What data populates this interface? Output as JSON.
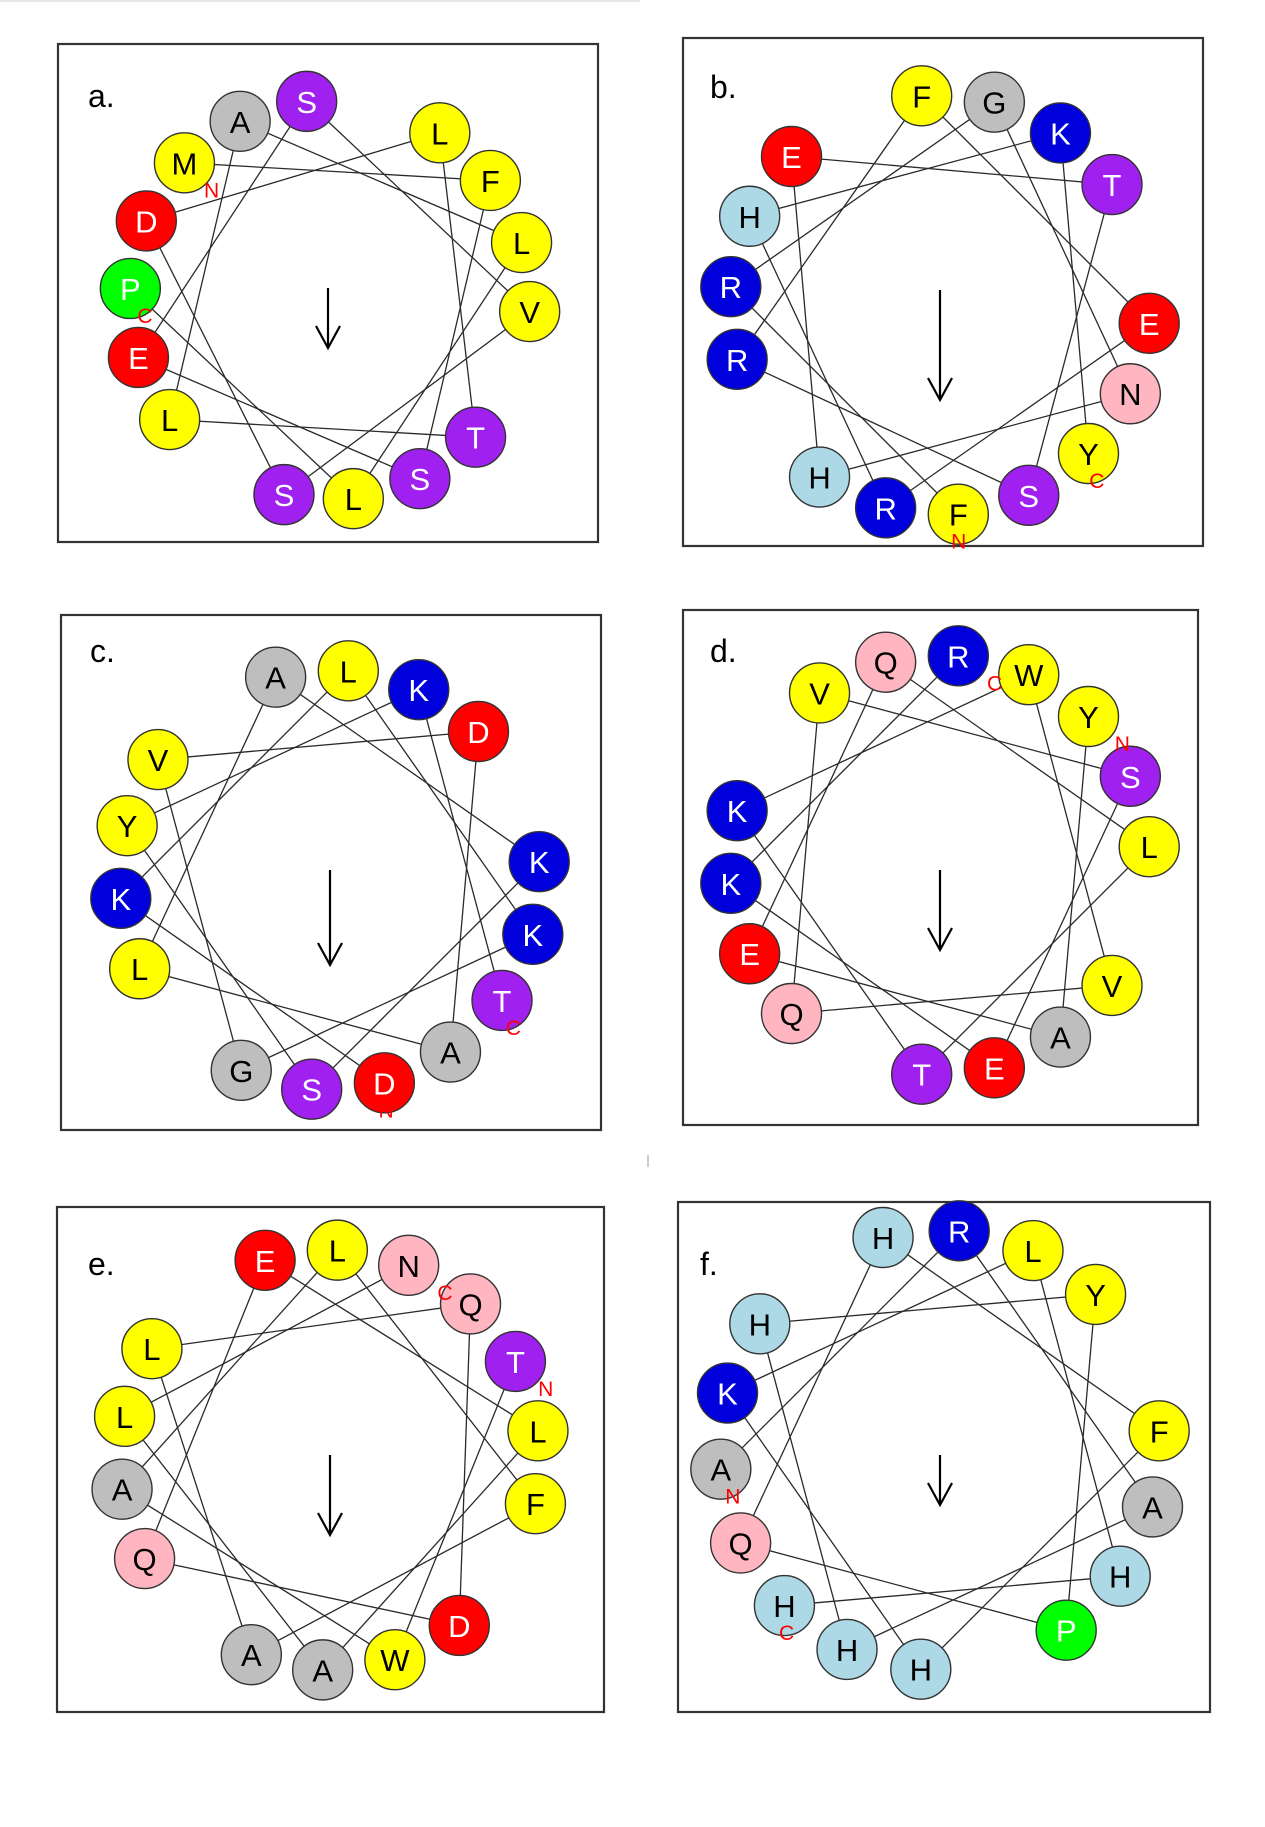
{
  "colors": {
    "hydrophobic": "#ffff00",
    "polar": "#a020f0",
    "acidic": "#ff0000",
    "basic": "#0000dd",
    "amide": "#ffb6c1",
    "small": "#bebebe",
    "histidine": "#add8e6",
    "proline": "#00ff00"
  },
  "panels": [
    {
      "label": "a.",
      "terminal_n": "N",
      "terminal_c": "C",
      "residues": [
        {
          "aa": "M",
          "cls": "hydrophobic"
        },
        {
          "aa": "F",
          "cls": "hydrophobic"
        },
        {
          "aa": "S",
          "cls": "polar"
        },
        {
          "aa": "E",
          "cls": "acidic"
        },
        {
          "aa": "S",
          "cls": "polar"
        },
        {
          "aa": "V",
          "cls": "hydrophobic"
        },
        {
          "aa": "S",
          "cls": "polar"
        },
        {
          "aa": "D",
          "cls": "acidic"
        },
        {
          "aa": "L",
          "cls": "hydrophobic"
        },
        {
          "aa": "T",
          "cls": "polar"
        },
        {
          "aa": "L",
          "cls": "hydrophobic"
        },
        {
          "aa": "A",
          "cls": "small"
        },
        {
          "aa": "L",
          "cls": "hydrophobic"
        },
        {
          "aa": "L",
          "cls": "hydrophobic"
        },
        {
          "aa": "P",
          "cls": "proline"
        }
      ]
    },
    {
      "label": "b.",
      "terminal_n": "N",
      "terminal_c": "C",
      "residues": [
        {
          "aa": "F",
          "cls": "hydrophobic"
        },
        {
          "aa": "R",
          "cls": "basic"
        },
        {
          "aa": "G",
          "cls": "small"
        },
        {
          "aa": "N",
          "cls": "amide"
        },
        {
          "aa": "H",
          "cls": "histidine"
        },
        {
          "aa": "E",
          "cls": "acidic"
        },
        {
          "aa": "T",
          "cls": "polar"
        },
        {
          "aa": "S",
          "cls": "polar"
        },
        {
          "aa": "R",
          "cls": "basic"
        },
        {
          "aa": "F",
          "cls": "hydrophobic"
        },
        {
          "aa": "E",
          "cls": "acidic"
        },
        {
          "aa": "R",
          "cls": "basic"
        },
        {
          "aa": "H",
          "cls": "histidine"
        },
        {
          "aa": "K",
          "cls": "basic"
        },
        {
          "aa": "Y",
          "cls": "hydrophobic"
        }
      ]
    },
    {
      "label": "c.",
      "terminal_n": "N",
      "terminal_c": "C",
      "residues": [
        {
          "aa": "D",
          "cls": "acidic"
        },
        {
          "aa": "K",
          "cls": "basic"
        },
        {
          "aa": "L",
          "cls": "hydrophobic"
        },
        {
          "aa": "K",
          "cls": "basic"
        },
        {
          "aa": "G",
          "cls": "small"
        },
        {
          "aa": "V",
          "cls": "hydrophobic"
        },
        {
          "aa": "D",
          "cls": "acidic"
        },
        {
          "aa": "A",
          "cls": "small"
        },
        {
          "aa": "L",
          "cls": "hydrophobic"
        },
        {
          "aa": "A",
          "cls": "small"
        },
        {
          "aa": "K",
          "cls": "basic"
        },
        {
          "aa": "S",
          "cls": "polar"
        },
        {
          "aa": "Y",
          "cls": "hydrophobic"
        },
        {
          "aa": "K",
          "cls": "basic"
        },
        {
          "aa": "T",
          "cls": "polar"
        }
      ]
    },
    {
      "label": "d.",
      "terminal_n": "N",
      "terminal_c": "C",
      "residues": [
        {
          "aa": "Y",
          "cls": "hydrophobic"
        },
        {
          "aa": "A",
          "cls": "small"
        },
        {
          "aa": "E",
          "cls": "acidic"
        },
        {
          "aa": "Q",
          "cls": "amide"
        },
        {
          "aa": "L",
          "cls": "hydrophobic"
        },
        {
          "aa": "T",
          "cls": "polar"
        },
        {
          "aa": "K",
          "cls": "basic"
        },
        {
          "aa": "W",
          "cls": "hydrophobic"
        },
        {
          "aa": "V",
          "cls": "hydrophobic"
        },
        {
          "aa": "Q",
          "cls": "amide"
        },
        {
          "aa": "V",
          "cls": "hydrophobic"
        },
        {
          "aa": "S",
          "cls": "polar"
        },
        {
          "aa": "E",
          "cls": "acidic"
        },
        {
          "aa": "K",
          "cls": "basic"
        },
        {
          "aa": "R",
          "cls": "basic"
        }
      ]
    },
    {
      "label": "e.",
      "terminal_n": "N",
      "terminal_c": "C",
      "residues": [
        {
          "aa": "T",
          "cls": "polar"
        },
        {
          "aa": "W",
          "cls": "hydrophobic"
        },
        {
          "aa": "A",
          "cls": "small"
        },
        {
          "aa": "L",
          "cls": "hydrophobic"
        },
        {
          "aa": "F",
          "cls": "hydrophobic"
        },
        {
          "aa": "A",
          "cls": "small"
        },
        {
          "aa": "L",
          "cls": "hydrophobic"
        },
        {
          "aa": "Q",
          "cls": "amide"
        },
        {
          "aa": "D",
          "cls": "acidic"
        },
        {
          "aa": "Q",
          "cls": "amide"
        },
        {
          "aa": "E",
          "cls": "acidic"
        },
        {
          "aa": "L",
          "cls": "hydrophobic"
        },
        {
          "aa": "A",
          "cls": "small"
        },
        {
          "aa": "L",
          "cls": "hydrophobic"
        },
        {
          "aa": "N",
          "cls": "amide"
        }
      ]
    },
    {
      "label": "f.",
      "terminal_n": "N",
      "terminal_c": "C",
      "residues": [
        {
          "aa": "A",
          "cls": "small"
        },
        {
          "aa": "R",
          "cls": "basic"
        },
        {
          "aa": "A",
          "cls": "small"
        },
        {
          "aa": "H",
          "cls": "histidine"
        },
        {
          "aa": "H",
          "cls": "histidine"
        },
        {
          "aa": "Y",
          "cls": "hydrophobic"
        },
        {
          "aa": "P",
          "cls": "proline"
        },
        {
          "aa": "Q",
          "cls": "amide"
        },
        {
          "aa": "H",
          "cls": "histidine"
        },
        {
          "aa": "F",
          "cls": "hydrophobic"
        },
        {
          "aa": "H",
          "cls": "histidine"
        },
        {
          "aa": "K",
          "cls": "basic"
        },
        {
          "aa": "L",
          "cls": "hydrophobic"
        },
        {
          "aa": "H",
          "cls": "histidine"
        },
        {
          "aa": "H",
          "cls": "histidine"
        }
      ]
    }
  ]
}
